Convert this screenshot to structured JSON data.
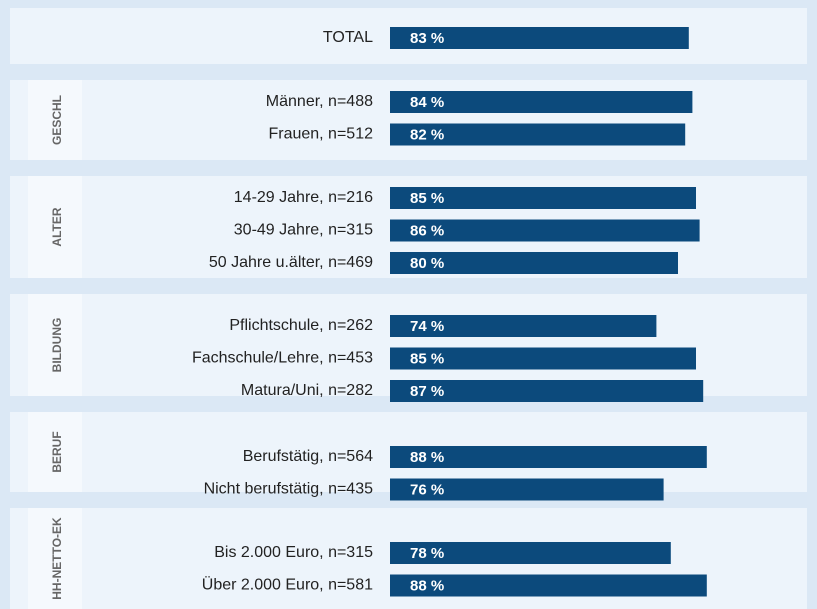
{
  "chart_data": {
    "type": "bar",
    "color": "#0c4a7c",
    "xlim": [
      0,
      100
    ],
    "groups": [
      {
        "categories": [
          "TOTAL"
        ],
        "values": [
          83
        ],
        "value_labels": [
          "83 %"
        ]
      },
      {
        "name": "GESCHL",
        "categories": [
          "Männer, n=488",
          "Frauen, n=512"
        ],
        "values": [
          84,
          82
        ],
        "value_labels": [
          "84 %",
          "82 %"
        ]
      },
      {
        "name": "ALTER",
        "categories": [
          "14-29 Jahre, n=216",
          "30-49 Jahre, n=315",
          "50 Jahre u.älter, n=469"
        ],
        "values": [
          85,
          86,
          80
        ],
        "value_labels": [
          "85 %",
          "86 %",
          "80 %"
        ]
      },
      {
        "name": "BILDUNG",
        "categories": [
          "Pflichtschule, n=262",
          "Fachschule/Lehre, n=453",
          "Matura/Uni, n=282"
        ],
        "values": [
          74,
          85,
          87
        ],
        "value_labels": [
          "74 %",
          "85 %",
          "87 %"
        ]
      },
      {
        "name": "BERUF",
        "categories": [
          "Berufstätig, n=564",
          "Nicht berufstätig, n=435"
        ],
        "values": [
          88,
          76
        ],
        "value_labels": [
          "88 %",
          "76 %"
        ]
      },
      {
        "name": "HH-NETTO-EK",
        "categories": [
          "Bis 2.000 Euro, n=315",
          "Über 2.000 Euro, n=581"
        ],
        "values": [
          78,
          88
        ],
        "value_labels": [
          "78 %",
          "88 %"
        ]
      }
    ]
  }
}
